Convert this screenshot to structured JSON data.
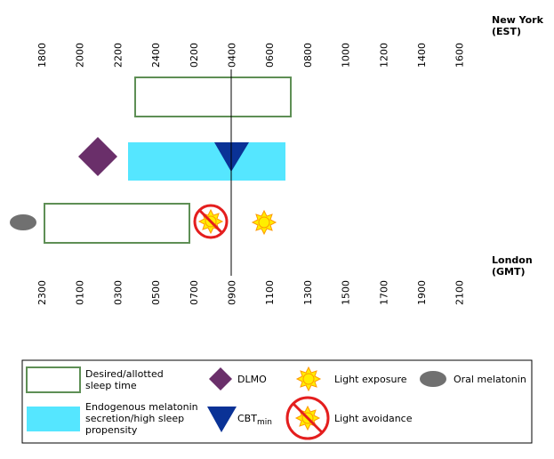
{
  "top_axis": {
    "city": "New York",
    "zone": "(EST)",
    "ticks": [
      "1800",
      "2000",
      "2200",
      "2400",
      "0200",
      "0400",
      "0600",
      "0800",
      "1000",
      "1200",
      "1400",
      "1600"
    ]
  },
  "bottom_axis": {
    "city": "London",
    "zone": "(GMT)",
    "ticks": [
      "2300",
      "0100",
      "0300",
      "0500",
      "0700",
      "0900",
      "1100",
      "1300",
      "1500",
      "1700",
      "1900",
      "2100"
    ]
  },
  "legend": {
    "sleep_time": [
      "Desired/allotted",
      "sleep time"
    ],
    "melatonin_secretion": [
      "Endogenous melatonin",
      "secretion/high sleep",
      "propensity"
    ],
    "dlmo": "DLMO",
    "cbt_min_main": "CBT",
    "cbt_min_sub": "min",
    "light_exposure": "Light exposure",
    "light_avoidance": "Light avoidance",
    "oral_melatonin": "Oral melatonin"
  },
  "colors": {
    "sleep_box_border": "#5e8f55",
    "melatonin_fill": "#55e6ff",
    "dlmo": "#6a2f6a",
    "cbt_min": "#0a3296",
    "sun_fill": "#ffee00",
    "sun_stroke": "#ff9900",
    "avoid_ring": "#e41e1e",
    "oral_melatonin": "#707070"
  }
}
